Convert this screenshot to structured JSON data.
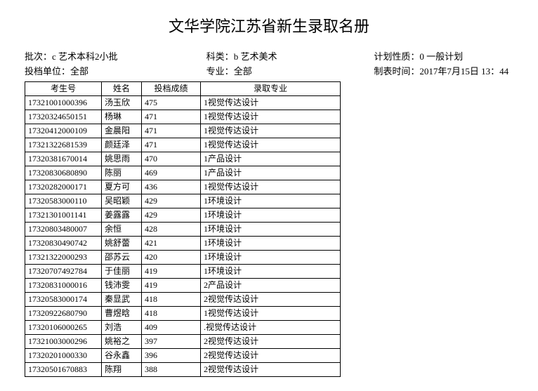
{
  "title": "文华学院江苏省新生录取名册",
  "meta": {
    "row1": {
      "left_label": "批次：",
      "left_value": "c 艺术本科2小批",
      "mid_label": "科类：",
      "mid_value": "b 艺术美术",
      "right_label": "计划性质：",
      "right_value": "0 一般计划"
    },
    "row2": {
      "left_label": "投档单位：",
      "left_value": "全部",
      "mid_label": "专业：",
      "mid_value": "全部",
      "right_label": "制表时间：",
      "right_value": "2017年7月15日 13：44"
    }
  },
  "table": {
    "headers": {
      "id": "考生号",
      "name": "姓名",
      "score": "投档成绩",
      "major": "录取专业"
    },
    "rows": [
      {
        "id": "17321001000396",
        "name": "汤玉欣",
        "score": "475",
        "major": "1视觉传达设计"
      },
      {
        "id": "17320324650151",
        "name": "杨琳",
        "score": "471",
        "major": "1视觉传达设计"
      },
      {
        "id": "17320412000109",
        "name": "金晨阳",
        "score": "471",
        "major": "1视觉传达设计"
      },
      {
        "id": "17321322681539",
        "name": "颜廷泽",
        "score": "471",
        "major": "1视觉传达设计"
      },
      {
        "id": "17320381670014",
        "name": "姚思雨",
        "score": "470",
        "major": "1产品设计"
      },
      {
        "id": "17320830680890",
        "name": "陈丽",
        "score": "469",
        "major": "1产品设计"
      },
      {
        "id": "17320282000171",
        "name": "夏方可",
        "score": "436",
        "major": "1视觉传达设计"
      },
      {
        "id": "17320583000110",
        "name": "吴昭颖",
        "score": "429",
        "major": "1环境设计"
      },
      {
        "id": "17321301001141",
        "name": "姜露露",
        "score": "429",
        "major": "1环境设计"
      },
      {
        "id": "17320803480007",
        "name": "余恒",
        "score": "428",
        "major": "1环境设计"
      },
      {
        "id": "17320830490742",
        "name": "姚舒蕾",
        "score": "421",
        "major": "1环境设计"
      },
      {
        "id": "17321322000293",
        "name": "邵苏云",
        "score": "420",
        "major": "1环境设计"
      },
      {
        "id": "17320707492784",
        "name": "于佳丽",
        "score": "419",
        "major": "1环境设计"
      },
      {
        "id": "17320831000016",
        "name": "钱沛雯",
        "score": "419",
        "major": "2产品设计"
      },
      {
        "id": "17320583000174",
        "name": "秦显武",
        "score": "418",
        "major": "2视觉传达设计"
      },
      {
        "id": "17320922680790",
        "name": "曹煜晗",
        "score": "418",
        "major": "1视觉传达设计"
      },
      {
        "id": "17320106000265",
        "name": "刘浩",
        "score": "409",
        "major": ".视觉传达设计"
      },
      {
        "id": "17321003000296",
        "name": "姚裕之",
        "score": "397",
        "major": "2视觉传达设计"
      },
      {
        "id": "17320201000330",
        "name": "谷永鑫",
        "score": "396",
        "major": "2视觉传达设计"
      },
      {
        "id": "17320501670883",
        "name": "陈翔",
        "score": "388",
        "major": "2视觉传达设计"
      }
    ]
  }
}
